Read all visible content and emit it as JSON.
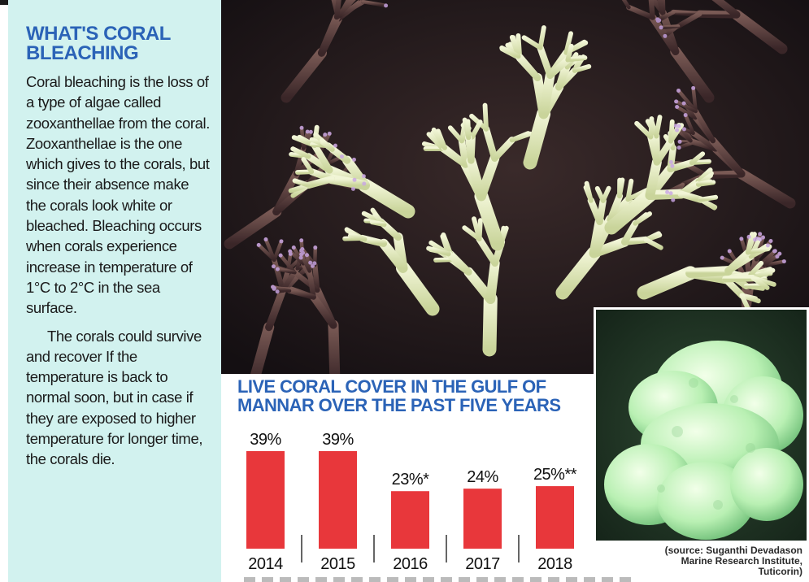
{
  "left_panel": {
    "heading": "WHAT'S CORAL BLEACHING",
    "paragraph1": "Coral bleaching is the loss of a type of algae called zooxanthellae from the coral. Zooxanthellae is the one which gives to the corals, but since their absence make the corals look white or bleached. Bleaching occurs when corals experience increase in temperature of 1°C to 2°C in the sea surface.",
    "paragraph2": "The corals could survive and recover If the temperature is back to normal soon, but in case if they are exposed to higher temperature for longer time, the corals die."
  },
  "chart_data": {
    "type": "bar",
    "title": "LIVE CORAL COVER IN THE GULF OF MANNAR OVER THE PAST FIVE YEARS",
    "categories": [
      "2014",
      "2015",
      "2016",
      "2017",
      "2018"
    ],
    "values": [
      39,
      39,
      23,
      24,
      25
    ],
    "value_labels": [
      "39%",
      "39%",
      "23%*",
      "24%",
      "25%**"
    ],
    "bar_color": "#e8373b",
    "title_color": "#2b63b7"
  },
  "source": {
    "line1": "(source: Suganthi Devadason",
    "line2": "Marine Research Institute,",
    "line3": "Tuticorin)"
  },
  "colors": {
    "panel_background": "#d2f2ef",
    "heading": "#2b63b7"
  }
}
